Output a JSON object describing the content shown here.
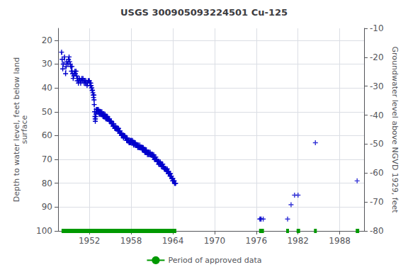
{
  "chart_data": {
    "type": "line",
    "title": "USGS 300905093224501 Cu-125",
    "ylabel": "Depth to water level, feet below land\nsurface",
    "y2label": "Groundwater level above NGVD 1929, feet",
    "xlim": [
      1947.5,
      1991.5
    ],
    "xticks": [
      1952,
      1958,
      1964,
      1970,
      1976,
      1982,
      1988
    ],
    "ylim": [
      100,
      15
    ],
    "yticks": [
      20,
      30,
      40,
      50,
      60,
      70,
      80,
      90,
      100
    ],
    "y2lim": [
      -80,
      -10
    ],
    "y2ticks": [
      -10,
      -20,
      -30,
      -40,
      -50,
      -60,
      -70,
      -80
    ],
    "grid": true,
    "legend": "bottom",
    "series": [
      {
        "type": "line",
        "color": "#0000cc",
        "marker": "plus",
        "line_style": "dashed",
        "x": [
          1948.0,
          1948.08,
          1948.17,
          1948.25,
          1948.42,
          1948.58,
          1948.67,
          1948.75,
          1948.92,
          1949.0,
          1949.08,
          1949.17,
          1949.25,
          1949.33,
          1949.42,
          1949.5,
          1949.58,
          1949.67,
          1949.75,
          1949.83,
          1949.92,
          1950.0,
          1950.08,
          1950.17,
          1950.25,
          1950.33,
          1950.42,
          1950.5,
          1950.58,
          1950.67,
          1950.75,
          1950.83,
          1950.92,
          1951.0,
          1951.08,
          1951.17,
          1951.25,
          1951.33,
          1951.42,
          1951.5,
          1951.58,
          1951.67,
          1951.75,
          1951.83,
          1951.92,
          1952.0,
          1952.05,
          1952.1,
          1952.15,
          1952.17,
          1952.2,
          1952.25,
          1952.3,
          1952.35,
          1952.4,
          1952.45,
          1952.5,
          1952.55,
          1952.6,
          1952.65,
          1952.67,
          1952.7,
          1952.75,
          1952.8,
          1952.83,
          1952.85,
          1952.87,
          1952.9,
          1952.92,
          1952.95,
          1953.0
        ],
        "values": [
          25,
          28,
          32,
          30,
          27,
          34,
          31,
          29,
          30,
          28,
          27,
          29,
          30,
          31,
          33,
          31,
          34,
          36,
          35,
          34,
          33,
          34,
          33,
          35,
          37,
          36,
          38,
          37,
          36,
          37,
          38,
          37,
          36,
          37,
          36,
          37,
          38,
          37,
          38,
          37,
          38,
          39,
          38,
          37,
          37,
          37,
          38,
          38,
          38,
          39,
          38,
          39,
          40,
          40,
          41,
          41,
          42,
          43,
          44,
          43,
          45,
          47,
          50,
          52,
          53,
          54,
          53,
          52,
          51,
          50,
          49
        ]
      },
      {
        "type": "line",
        "color": "#0000cc",
        "marker": "plus",
        "line_style": "dashed",
        "x": [
          1953.05,
          1953.1,
          1953.15,
          1953.2,
          1953.25,
          1953.3,
          1953.35,
          1953.4,
          1953.45,
          1953.5,
          1953.55,
          1953.6,
          1953.65,
          1953.7,
          1953.75,
          1953.8,
          1953.83,
          1953.87,
          1953.9,
          1953.95,
          1954.0,
          1954.05,
          1954.1,
          1954.15,
          1954.2,
          1954.25,
          1954.3,
          1954.35,
          1954.4,
          1954.45,
          1954.5,
          1954.55,
          1954.6,
          1954.65,
          1954.7,
          1954.75,
          1954.8,
          1954.85,
          1954.9,
          1954.95
        ],
        "values": [
          50,
          49,
          49,
          50,
          50,
          49,
          50,
          51,
          50,
          51,
          50,
          51,
          50,
          51,
          51,
          50,
          51,
          51,
          51,
          52,
          51,
          52,
          51,
          52,
          52,
          51,
          52,
          53,
          52,
          52,
          53,
          53,
          52,
          53,
          53,
          53,
          53,
          54,
          53,
          54
        ]
      },
      {
        "type": "line",
        "color": "#0000cc",
        "marker": "plus",
        "line_style": "dashed",
        "x": [
          1955.0,
          1955.05,
          1955.1,
          1955.15,
          1955.2,
          1955.25,
          1955.3,
          1955.35,
          1955.4,
          1955.45,
          1955.5,
          1955.55,
          1955.6,
          1955.65,
          1955.7,
          1955.75,
          1955.8,
          1955.85,
          1955.9,
          1955.95,
          1956.0,
          1956.05,
          1956.1,
          1956.15,
          1956.2,
          1956.25,
          1956.3,
          1956.35,
          1956.4,
          1956.45,
          1956.5,
          1956.55,
          1956.6,
          1956.65,
          1956.7,
          1956.75,
          1956.8,
          1956.85,
          1956.9,
          1956.95
        ],
        "values": [
          54,
          54,
          54,
          54,
          55,
          55,
          55,
          55,
          56,
          56,
          55,
          56,
          56,
          57,
          57,
          57,
          56,
          57,
          57,
          57,
          57,
          57,
          58,
          58,
          57,
          58,
          58,
          59,
          58,
          59,
          59,
          59,
          60,
          59,
          60,
          60,
          60,
          60,
          61,
          60
        ]
      },
      {
        "type": "line",
        "color": "#0000cc",
        "marker": "plus",
        "line_style": "dashed",
        "x": [
          1957.0,
          1957.05,
          1957.1,
          1957.15,
          1957.2,
          1957.25,
          1957.3,
          1957.35,
          1957.4,
          1957.45,
          1957.5,
          1957.55,
          1957.6,
          1957.65,
          1957.7,
          1957.75,
          1957.8,
          1957.85,
          1957.9,
          1957.95,
          1958.0,
          1958.05,
          1958.1,
          1958.15,
          1958.2,
          1958.25,
          1958.3,
          1958.35,
          1958.4,
          1958.45,
          1958.5,
          1958.55,
          1958.6,
          1958.65,
          1958.7,
          1958.75,
          1958.8,
          1958.85,
          1958.9,
          1958.95
        ],
        "values": [
          60,
          60,
          60,
          61,
          61,
          61,
          61,
          62,
          62,
          61,
          62,
          62,
          62,
          62,
          63,
          63,
          62,
          63,
          62,
          63,
          62,
          62,
          63,
          63,
          62,
          63,
          63,
          64,
          63,
          63,
          64,
          63,
          63,
          64,
          64,
          64,
          64,
          64,
          64,
          65
        ]
      },
      {
        "type": "line",
        "color": "#0000cc",
        "marker": "plus",
        "line_style": "dashed",
        "x": [
          1959.0,
          1959.05,
          1959.1,
          1959.15,
          1959.2,
          1959.25,
          1959.3,
          1959.35,
          1959.4,
          1959.45,
          1959.5,
          1959.55,
          1959.6,
          1959.65,
          1959.7,
          1959.75,
          1959.8,
          1959.85,
          1959.9,
          1959.95,
          1960.0,
          1960.05,
          1960.1,
          1960.15,
          1960.2,
          1960.25,
          1960.3,
          1960.35,
          1960.4,
          1960.45,
          1960.5,
          1960.55,
          1960.6,
          1960.65,
          1960.7,
          1960.75,
          1960.8,
          1960.85,
          1960.9,
          1960.95
        ],
        "values": [
          64,
          64,
          65,
          65,
          65,
          64,
          65,
          65,
          65,
          65,
          65,
          65,
          66,
          65,
          66,
          65,
          66,
          66,
          66,
          67,
          66,
          66,
          67,
          67,
          66,
          67,
          67,
          68,
          67,
          67,
          68,
          67,
          67,
          68,
          68,
          67,
          68,
          68,
          68,
          68
        ]
      },
      {
        "type": "line",
        "color": "#0000cc",
        "marker": "plus",
        "line_style": "dashed",
        "x": [
          1961.0,
          1961.05,
          1961.1,
          1961.15,
          1961.2,
          1961.25,
          1961.3,
          1961.35,
          1961.4,
          1961.45,
          1961.5,
          1961.55,
          1961.6,
          1961.65,
          1961.7,
          1961.75,
          1961.8,
          1961.85,
          1961.9,
          1961.95,
          1962.0,
          1962.05,
          1962.1,
          1962.15,
          1962.2,
          1962.25,
          1962.3,
          1962.35,
          1962.4,
          1962.45,
          1962.5,
          1962.55,
          1962.6,
          1962.65,
          1962.7,
          1962.75,
          1962.8,
          1962.85,
          1962.9,
          1962.95,
          1963.0,
          1963.05,
          1963.1,
          1963.15,
          1963.2,
          1963.25,
          1963.3,
          1963.35,
          1963.4,
          1963.45,
          1963.5,
          1963.55,
          1963.6,
          1963.65,
          1963.7,
          1963.75,
          1963.8,
          1963.85,
          1963.9,
          1963.95,
          1964.0,
          1964.05,
          1964.1,
          1964.15,
          1964.2,
          1964.25,
          1964.3,
          1964.35,
          1964.4
        ],
        "values": [
          68,
          68,
          68,
          69,
          69,
          68,
          69,
          70,
          69,
          70,
          70,
          69,
          70,
          70,
          70,
          71,
          71,
          71,
          71,
          72,
          71,
          71,
          72,
          72,
          71,
          72,
          72,
          73,
          72,
          72,
          73,
          72,
          73,
          73,
          73,
          74,
          74,
          74,
          74,
          74,
          74,
          74,
          75,
          75,
          74,
          75,
          75,
          76,
          75,
          76,
          76,
          76,
          77,
          76,
          77,
          77,
          77,
          78,
          78,
          79,
          78,
          79,
          79,
          79,
          79,
          80,
          80,
          80,
          80
        ]
      },
      {
        "type": "scatter",
        "color": "#0000cc",
        "marker": "plus",
        "x": [
          1976.5,
          1976.6,
          1976.7,
          1977.0,
          1980.5,
          1981.0,
          1981.5,
          1982.0,
          1984.5,
          1990.5
        ],
        "values": [
          95,
          95,
          95,
          95,
          95,
          89,
          85,
          85,
          63,
          79
        ]
      },
      {
        "type": "line",
        "name": "Period of approved data",
        "color": "#009900",
        "marker": "none",
        "line_style": "solid",
        "x": [
          1948.0,
          1964.5,
          null,
          1976.4,
          1977.1,
          null,
          1980.3,
          1980.7,
          null,
          1981.8,
          1982.3,
          null,
          1984.3,
          1984.7,
          null,
          1990.3,
          1990.8
        ],
        "values": [
          100,
          100,
          null,
          100,
          100,
          null,
          100,
          100,
          null,
          100,
          100,
          null,
          100,
          100,
          null,
          100,
          100
        ]
      }
    ]
  }
}
